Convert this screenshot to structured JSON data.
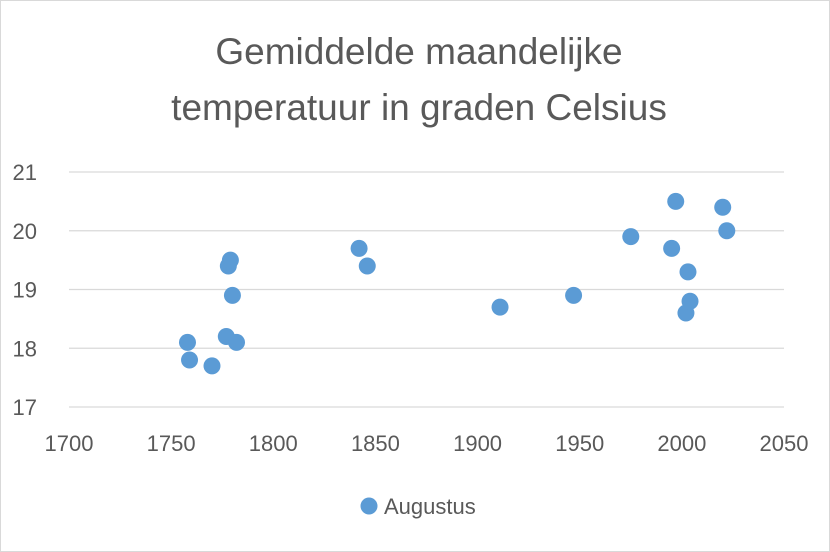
{
  "chart_data": {
    "type": "scatter",
    "title_lines": [
      "Gemiddelde maandelijke",
      "temperatuur in graden Celsius"
    ],
    "xlim": [
      1700,
      2050
    ],
    "ylim": [
      17,
      21
    ],
    "x_ticks": [
      "1700",
      "1750",
      "1800",
      "1850",
      "1900",
      "1950",
      "2000",
      "2050"
    ],
    "y_ticks": [
      "17",
      "18",
      "19",
      "20",
      "21"
    ],
    "grid": "horizontal",
    "legend_position": "bottom",
    "series": [
      {
        "name": "Augustus",
        "color": "#5b9bd5",
        "points": [
          {
            "x": 1758,
            "y": 18.1
          },
          {
            "x": 1759,
            "y": 17.8
          },
          {
            "x": 1770,
            "y": 17.7
          },
          {
            "x": 1777,
            "y": 18.2
          },
          {
            "x": 1778,
            "y": 19.4
          },
          {
            "x": 1779,
            "y": 19.5
          },
          {
            "x": 1780,
            "y": 18.9
          },
          {
            "x": 1782,
            "y": 18.1
          },
          {
            "x": 1842,
            "y": 19.7
          },
          {
            "x": 1846,
            "y": 19.4
          },
          {
            "x": 1911,
            "y": 18.7
          },
          {
            "x": 1947,
            "y": 18.9
          },
          {
            "x": 1975,
            "y": 19.9
          },
          {
            "x": 1995,
            "y": 19.7
          },
          {
            "x": 1997,
            "y": 20.5
          },
          {
            "x": 2002,
            "y": 18.6
          },
          {
            "x": 2003,
            "y": 19.3
          },
          {
            "x": 2004,
            "y": 18.8
          },
          {
            "x": 2020,
            "y": 20.4
          },
          {
            "x": 2022,
            "y": 20.0
          }
        ]
      }
    ]
  }
}
